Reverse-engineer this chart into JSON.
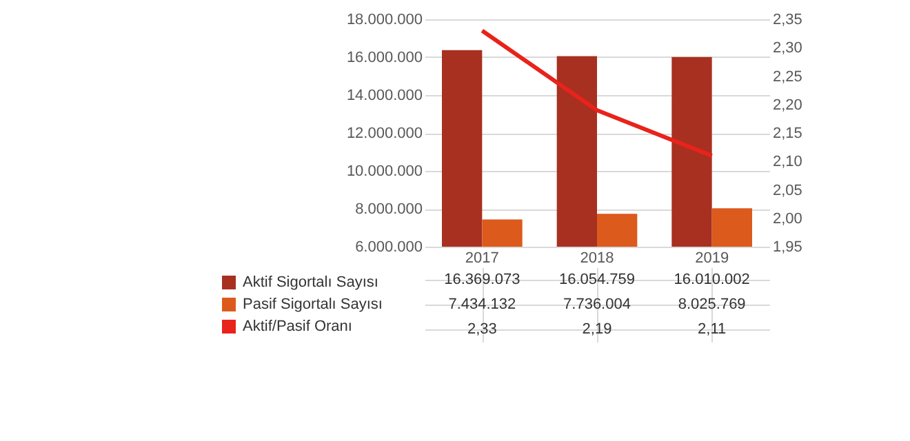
{
  "chart_data": {
    "type": "bar",
    "categories": [
      "2017",
      "2018",
      "2019"
    ],
    "series": [
      {
        "name": "Aktif Sigortalı Sayısı",
        "color": "#a83020",
        "values": [
          16369073,
          16054759,
          16010002
        ],
        "value_labels": [
          "16.369.073",
          "16.054.759",
          "16.010.002"
        ]
      },
      {
        "name": "Pasif Sigortalı Sayısı",
        "color": "#dc5a1c",
        "values": [
          7434132,
          7736004,
          8025769
        ],
        "value_labels": [
          "7.434.132",
          "7.736.004",
          "8.025.769"
        ]
      },
      {
        "name": "Aktif/Pasif Oranı",
        "type": "line",
        "axis": "y2",
        "color": "#e8231b",
        "values": [
          2.33,
          2.19,
          2.11
        ],
        "value_labels": [
          "2,33",
          "2,19",
          "2,11"
        ]
      }
    ],
    "ylim": [
      6000000,
      18000000
    ],
    "yticks": [
      {
        "value": 6000000,
        "label": "6.000.000"
      },
      {
        "value": 8000000,
        "label": "8.000.000"
      },
      {
        "value": 10000000,
        "label": "10.000.000"
      },
      {
        "value": 12000000,
        "label": "12.000.000"
      },
      {
        "value": 14000000,
        "label": "14.000.000"
      },
      {
        "value": 16000000,
        "label": "16.000.000"
      },
      {
        "value": 18000000,
        "label": "18.000.000"
      }
    ],
    "y2lim": [
      1.95,
      2.35
    ],
    "y2ticks": [
      {
        "value": 1.95,
        "label": "1,95"
      },
      {
        "value": 2,
        "label": "2,00"
      },
      {
        "value": 2.05,
        "label": "2,05"
      },
      {
        "value": 2.1,
        "label": "2,10"
      },
      {
        "value": 2.15,
        "label": "2,15"
      },
      {
        "value": 2.2,
        "label": "2,20"
      },
      {
        "value": 2.25,
        "label": "2,25"
      },
      {
        "value": 2.3,
        "label": "2,30"
      },
      {
        "value": 2.35,
        "label": "2,35"
      }
    ],
    "grid": "y",
    "legend": "bottom",
    "marker": "none",
    "line_style": "solid"
  }
}
